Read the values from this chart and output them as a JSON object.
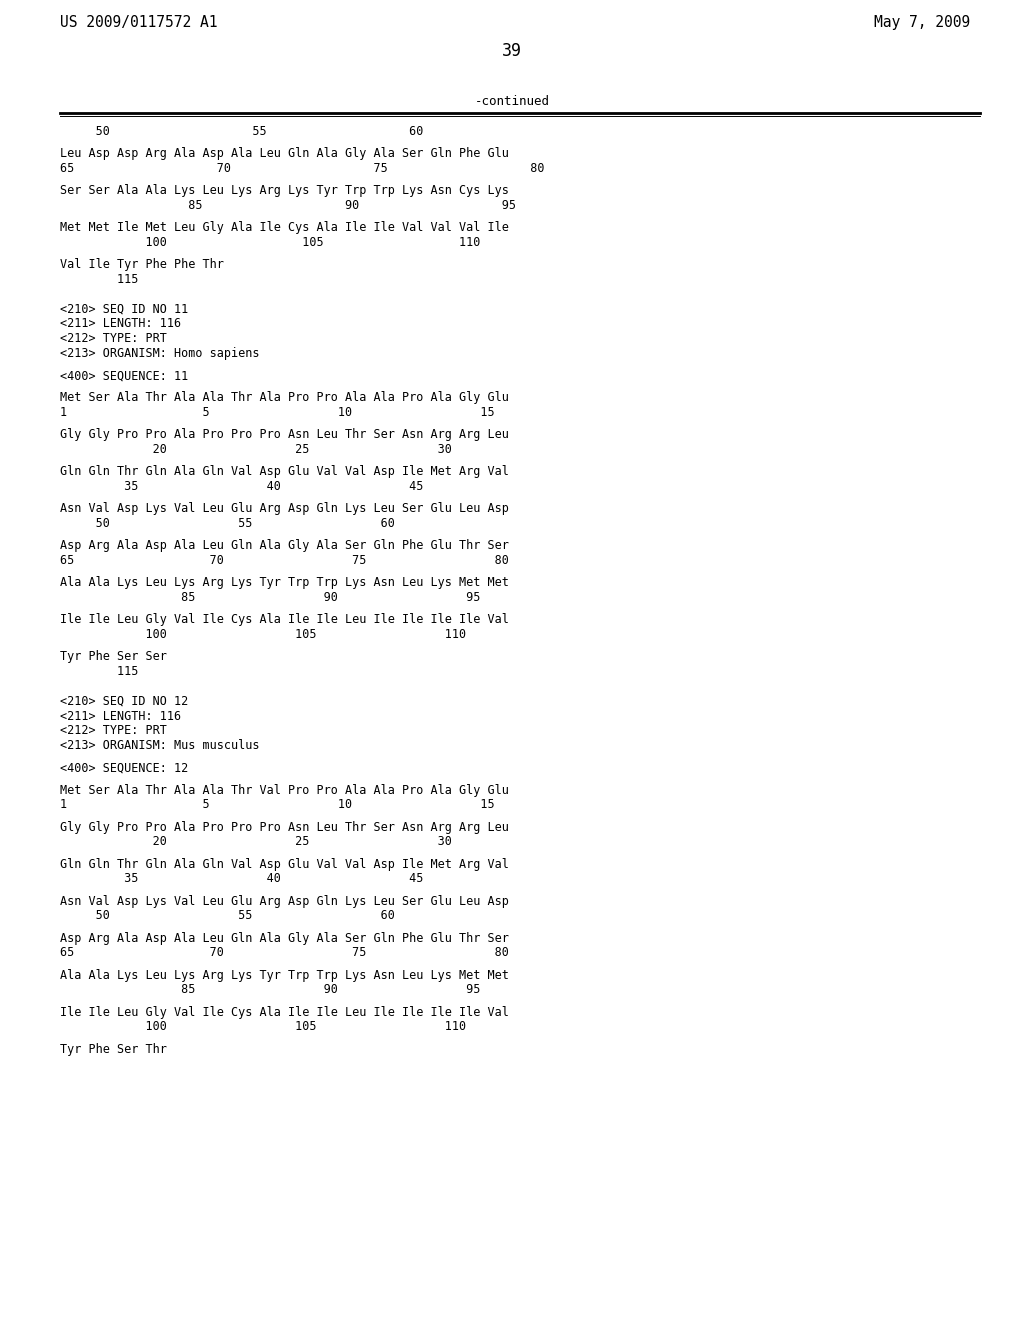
{
  "header_left": "US 2009/0117572 A1",
  "header_right": "May 7, 2009",
  "page_number": "39",
  "continued_label": "-continued",
  "background_color": "#ffffff",
  "text_color": "#000000",
  "lines": [
    "     50                    55                    60",
    "",
    "Leu Asp Asp Arg Ala Asp Ala Leu Gln Ala Gly Ala Ser Gln Phe Glu",
    "65                    70                    75                    80",
    "",
    "Ser Ser Ala Ala Lys Leu Lys Arg Lys Tyr Trp Trp Lys Asn Cys Lys",
    "                  85                    90                    95",
    "",
    "Met Met Ile Met Leu Gly Ala Ile Cys Ala Ile Ile Val Val Val Ile",
    "            100                   105                   110",
    "",
    "Val Ile Tyr Phe Phe Thr",
    "        115",
    "",
    "",
    "<210> SEQ ID NO 11",
    "<211> LENGTH: 116",
    "<212> TYPE: PRT",
    "<213> ORGANISM: Homo sapiens",
    "",
    "<400> SEQUENCE: 11",
    "",
    "Met Ser Ala Thr Ala Ala Thr Ala Pro Pro Ala Ala Pro Ala Gly Glu",
    "1                   5                  10                  15",
    "",
    "Gly Gly Pro Pro Ala Pro Pro Pro Asn Leu Thr Ser Asn Arg Arg Leu",
    "             20                  25                  30",
    "",
    "Gln Gln Thr Gln Ala Gln Val Asp Glu Val Val Asp Ile Met Arg Val",
    "         35                  40                  45",
    "",
    "Asn Val Asp Lys Val Leu Glu Arg Asp Gln Lys Leu Ser Glu Leu Asp",
    "     50                  55                  60",
    "",
    "Asp Arg Ala Asp Ala Leu Gln Ala Gly Ala Ser Gln Phe Glu Thr Ser",
    "65                   70                  75                  80",
    "",
    "Ala Ala Lys Leu Lys Arg Lys Tyr Trp Trp Lys Asn Leu Lys Met Met",
    "                 85                  90                  95",
    "",
    "Ile Ile Leu Gly Val Ile Cys Ala Ile Ile Leu Ile Ile Ile Ile Val",
    "            100                  105                  110",
    "",
    "Tyr Phe Ser Ser",
    "        115",
    "",
    "",
    "<210> SEQ ID NO 12",
    "<211> LENGTH: 116",
    "<212> TYPE: PRT",
    "<213> ORGANISM: Mus musculus",
    "",
    "<400> SEQUENCE: 12",
    "",
    "Met Ser Ala Thr Ala Ala Thr Val Pro Pro Ala Ala Pro Ala Gly Glu",
    "1                   5                  10                  15",
    "",
    "Gly Gly Pro Pro Ala Pro Pro Pro Asn Leu Thr Ser Asn Arg Arg Leu",
    "             20                  25                  30",
    "",
    "Gln Gln Thr Gln Ala Gln Val Asp Glu Val Val Asp Ile Met Arg Val",
    "         35                  40                  45",
    "",
    "Asn Val Asp Lys Val Leu Glu Arg Asp Gln Lys Leu Ser Glu Leu Asp",
    "     50                  55                  60",
    "",
    "Asp Arg Ala Asp Ala Leu Gln Ala Gly Ala Ser Gln Phe Glu Thr Ser",
    "65                   70                  75                  80",
    "",
    "Ala Ala Lys Leu Lys Arg Lys Tyr Trp Trp Lys Asn Leu Lys Met Met",
    "                 85                  90                  95",
    "",
    "Ile Ile Leu Gly Val Ile Cys Ala Ile Ile Leu Ile Ile Ile Ile Val",
    "            100                  105                  110",
    "",
    "Tyr Phe Ser Thr",
    ""
  ]
}
